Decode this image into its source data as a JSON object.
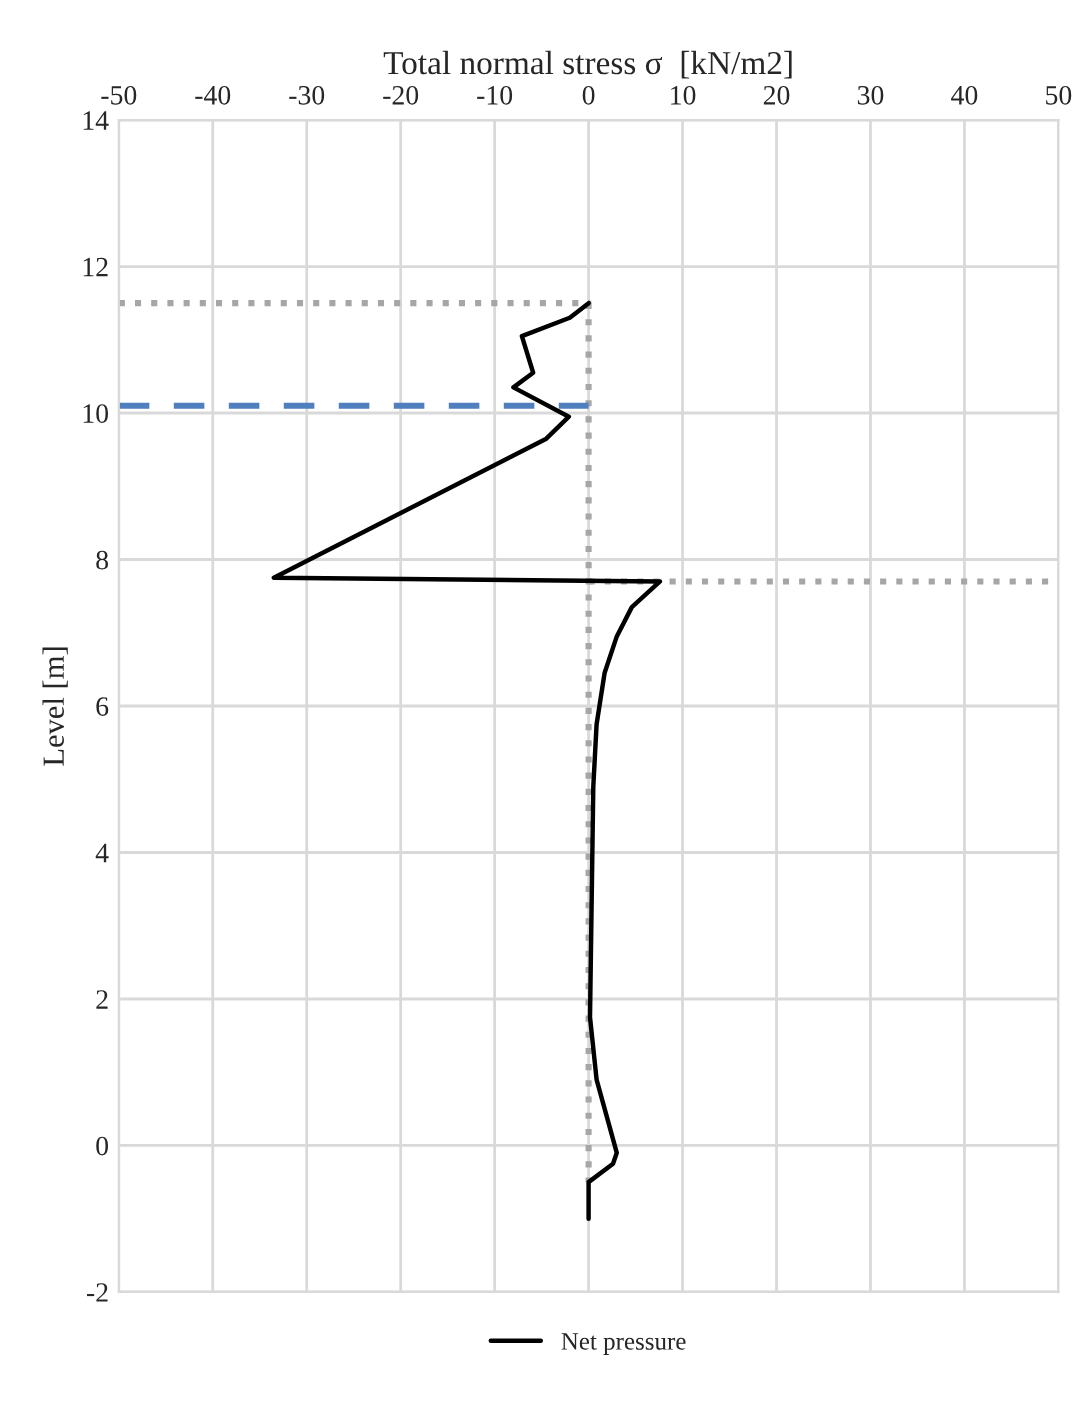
{
  "chart_data": {
    "type": "line",
    "xlabel": "Total normal stress σ  [kN/m2]",
    "ylabel": "Level [m]",
    "xlim": [
      -50,
      50
    ],
    "xticks": [
      -50,
      -40,
      -30,
      -20,
      -10,
      0,
      10,
      20,
      30,
      40,
      50
    ],
    "ylim": [
      -2,
      14
    ],
    "yticks": [
      -2,
      0,
      2,
      4,
      6,
      8,
      10,
      12,
      14
    ],
    "grid": true,
    "legend": "bottom",
    "marker": "none",
    "series": [
      {
        "color": "#a6a6a6",
        "line_style": "dotted",
        "x": [
          -50,
          0,
          0
        ],
        "values": [
          11.5,
          11.5,
          -0.5
        ]
      },
      {
        "color": "#a6a6a6",
        "line_style": "dotted",
        "x": [
          0,
          50
        ],
        "values": [
          7.7,
          7.7
        ]
      },
      {
        "color": "#4f7fbf",
        "line_style": "dashed",
        "x": [
          -50,
          0
        ],
        "values": [
          10.1,
          10.1
        ]
      },
      {
        "name": "Net pressure",
        "color": "#000000",
        "line_style": "solid",
        "x": [
          0,
          -2,
          -7.1,
          -5.9,
          -8,
          -2.1,
          -4.5,
          -33.5,
          7.6,
          4.6,
          3,
          1.7,
          0.85,
          0.5,
          0.15,
          0.85,
          3,
          2.6,
          0,
          0
        ],
        "values": [
          11.5,
          11.3,
          11.05,
          10.55,
          10.35,
          9.95,
          9.65,
          7.75,
          7.7,
          7.35,
          6.95,
          6.45,
          5.75,
          4.9,
          1.75,
          0.9,
          -0.1,
          -0.25,
          -0.5,
          -1
        ]
      }
    ]
  }
}
